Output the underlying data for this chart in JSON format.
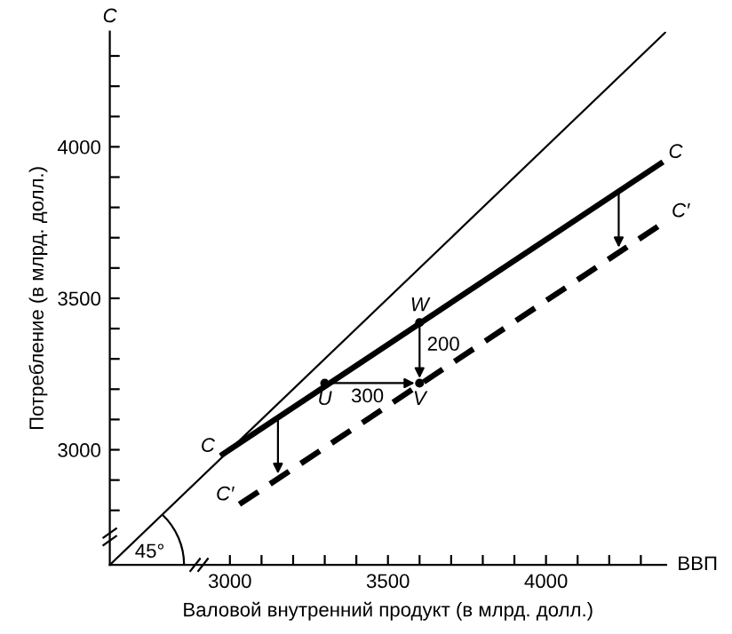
{
  "chart_data": {
    "type": "line",
    "xlabel": "Валовой внутренний продукт (в млрд. долл.)",
    "ylabel": "Потребление (в млрд. долл.)",
    "xlim": [
      2620,
      4380
    ],
    "ylim": [
      2620,
      4380
    ],
    "xticks": [
      3000,
      {
        "value": 3100,
        "label": null
      },
      {
        "value": 3200,
        "label": null
      },
      {
        "value": 3300,
        "label": null
      },
      {
        "value": 3400,
        "label": null
      },
      3500,
      {
        "value": 3600,
        "label": null
      },
      {
        "value": 3700,
        "label": null
      },
      {
        "value": 3800,
        "label": null
      },
      {
        "value": 3900,
        "label": null
      },
      4000,
      {
        "value": 4100,
        "label": null
      },
      {
        "value": 4200,
        "label": null
      },
      {
        "value": 4300,
        "label": null
      }
    ],
    "yticks": [
      {
        "value": 2800,
        "label": null
      },
      {
        "value": 2900,
        "label": null
      },
      3000,
      {
        "value": 3100,
        "label": null
      },
      {
        "value": 3200,
        "label": null
      },
      {
        "value": 3300,
        "label": null
      },
      {
        "value": 3400,
        "label": null
      },
      3500,
      {
        "value": 3600,
        "label": null
      },
      {
        "value": 3700,
        "label": null
      },
      {
        "value": 3800,
        "label": null
      },
      {
        "value": 3900,
        "label": null
      },
      4000,
      {
        "value": 4100,
        "label": null
      },
      {
        "value": 4200,
        "label": null
      },
      {
        "value": 4300,
        "label": null
      }
    ],
    "series": [
      {
        "color": "#000000",
        "line_style": "solid",
        "x": [
          2620,
          4380
        ],
        "values": [
          2620,
          4380
        ]
      },
      {
        "name": "C",
        "color": "#000000",
        "line_style": "solid",
        "x": [
          2970,
          4370
        ],
        "values": [
          2980,
          3950
        ]
      },
      {
        "name": "C′",
        "color": "#000000",
        "line_style": "dashed",
        "x": [
          3030,
          4380
        ],
        "values": [
          2820,
          3755
        ]
      },
      {
        "type": "scatter",
        "color": "#000000",
        "marker": "circle",
        "x": [
          3300,
          3600,
          3600
        ],
        "values": [
          3220,
          3220,
          3420
        ],
        "value_labels": [
          "U",
          "V",
          "W"
        ]
      }
    ],
    "annotations": [
      "C",
      "ВВП",
      "300",
      "200",
      "45°"
    ],
    "grid": false,
    "legend": false
  }
}
